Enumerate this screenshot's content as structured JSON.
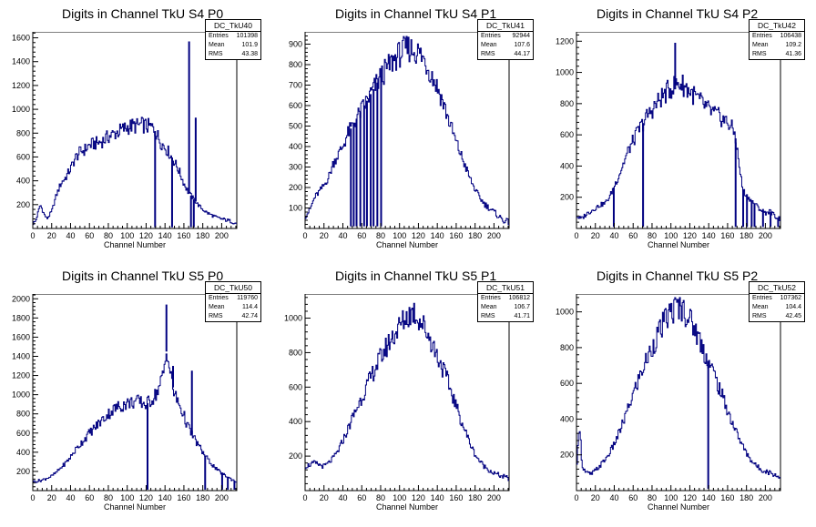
{
  "style": {
    "line_color": "#000080",
    "axis_color": "#000000",
    "background": "#ffffff"
  },
  "chart_data": [
    {
      "type": "bar",
      "title": "Digits in Channel TkU S4 P0",
      "xlabel": "Channel Number",
      "xlim": [
        0,
        216
      ],
      "ylim": [
        0,
        1650
      ],
      "xticks": [
        0,
        20,
        40,
        60,
        80,
        100,
        120,
        140,
        160,
        180,
        200
      ],
      "yticks": [
        200,
        400,
        600,
        800,
        1000,
        1200,
        1400,
        1600
      ],
      "stats": {
        "name": "DC_TkU40",
        "entries_label": "Entries",
        "entries": "101398",
        "mean_label": "Mean",
        "mean": "101.9",
        "rms_label": "RMS",
        "rms": "43.38"
      },
      "profile": [
        [
          0,
          40
        ],
        [
          3,
          60
        ],
        [
          8,
          200
        ],
        [
          12,
          120
        ],
        [
          15,
          80
        ],
        [
          20,
          140
        ],
        [
          25,
          280
        ],
        [
          30,
          380
        ],
        [
          35,
          430
        ],
        [
          40,
          500
        ],
        [
          45,
          590
        ],
        [
          50,
          640
        ],
        [
          55,
          660
        ],
        [
          60,
          700
        ],
        [
          65,
          710
        ],
        [
          70,
          720
        ],
        [
          75,
          740
        ],
        [
          80,
          770
        ],
        [
          85,
          790
        ],
        [
          90,
          810
        ],
        [
          95,
          830
        ],
        [
          100,
          850
        ],
        [
          105,
          860
        ],
        [
          110,
          860
        ],
        [
          115,
          870
        ],
        [
          120,
          860
        ],
        [
          125,
          850
        ],
        [
          128,
          840
        ],
        [
          132,
          780
        ],
        [
          136,
          720
        ],
        [
          140,
          680
        ],
        [
          144,
          640
        ],
        [
          150,
          560
        ],
        [
          155,
          480
        ],
        [
          160,
          380
        ],
        [
          165,
          300
        ],
        [
          170,
          250
        ],
        [
          175,
          200
        ],
        [
          180,
          160
        ],
        [
          185,
          130
        ],
        [
          190,
          110
        ],
        [
          195,
          90
        ],
        [
          200,
          80
        ],
        [
          205,
          70
        ],
        [
          210,
          60
        ],
        [
          216,
          40
        ]
      ],
      "spikes": [
        [
          129,
          10
        ],
        [
          147,
          10
        ],
        [
          165,
          1570
        ],
        [
          167,
          10
        ],
        [
          170,
          10
        ],
        [
          172,
          930
        ]
      ]
    },
    {
      "type": "bar",
      "title": "Digits in Channel TkU S4 P1",
      "xlabel": "Channel Number",
      "xlim": [
        0,
        216
      ],
      "ylim": [
        0,
        960
      ],
      "xticks": [
        0,
        20,
        40,
        60,
        80,
        100,
        120,
        140,
        160,
        180,
        200
      ],
      "yticks": [
        100,
        200,
        300,
        400,
        500,
        600,
        700,
        800,
        900
      ],
      "stats": {
        "name": "DC_TkU41",
        "entries_label": "Entries",
        "entries": "92944",
        "mean_label": "Mean",
        "mean": "107.6",
        "rms_label": "RMS",
        "rms": "44.17"
      },
      "profile": [
        [
          0,
          60
        ],
        [
          5,
          90
        ],
        [
          10,
          150
        ],
        [
          15,
          180
        ],
        [
          20,
          210
        ],
        [
          25,
          250
        ],
        [
          30,
          320
        ],
        [
          35,
          360
        ],
        [
          40,
          400
        ],
        [
          45,
          460
        ],
        [
          50,
          500
        ],
        [
          55,
          540
        ],
        [
          60,
          580
        ],
        [
          65,
          620
        ],
        [
          70,
          660
        ],
        [
          75,
          700
        ],
        [
          80,
          740
        ],
        [
          85,
          770
        ],
        [
          90,
          800
        ],
        [
          95,
          830
        ],
        [
          100,
          850
        ],
        [
          105,
          870
        ],
        [
          110,
          880
        ],
        [
          115,
          870
        ],
        [
          120,
          860
        ],
        [
          125,
          830
        ],
        [
          130,
          790
        ],
        [
          135,
          740
        ],
        [
          140,
          690
        ],
        [
          145,
          630
        ],
        [
          150,
          560
        ],
        [
          155,
          490
        ],
        [
          160,
          420
        ],
        [
          165,
          360
        ],
        [
          170,
          300
        ],
        [
          175,
          240
        ],
        [
          180,
          190
        ],
        [
          185,
          150
        ],
        [
          190,
          120
        ],
        [
          195,
          100
        ],
        [
          200,
          80
        ],
        [
          205,
          60
        ],
        [
          210,
          40
        ],
        [
          216,
          30
        ]
      ],
      "spikes": [
        [
          48,
          10
        ],
        [
          51,
          10
        ],
        [
          54,
          10
        ],
        [
          58,
          10
        ],
        [
          62,
          10
        ],
        [
          65,
          10
        ],
        [
          69,
          10
        ],
        [
          72,
          10
        ],
        [
          76,
          10
        ],
        [
          80,
          10
        ]
      ]
    },
    {
      "type": "bar",
      "title": "Digits in Channel TkU S4 P2",
      "xlabel": "Channel Number",
      "xlim": [
        0,
        216
      ],
      "ylim": [
        0,
        1260
      ],
      "xticks": [
        0,
        20,
        40,
        60,
        80,
        100,
        120,
        140,
        160,
        180,
        200
      ],
      "yticks": [
        200,
        400,
        600,
        800,
        1000,
        1200
      ],
      "stats": {
        "name": "DC_TkU42",
        "entries_label": "Entries",
        "entries": "106438",
        "mean_label": "Mean",
        "mean": "109.2",
        "rms_label": "RMS",
        "rms": "41.36"
      },
      "profile": [
        [
          0,
          80
        ],
        [
          5,
          60
        ],
        [
          10,
          90
        ],
        [
          15,
          110
        ],
        [
          20,
          130
        ],
        [
          25,
          150
        ],
        [
          30,
          160
        ],
        [
          35,
          200
        ],
        [
          40,
          270
        ],
        [
          45,
          340
        ],
        [
          50,
          420
        ],
        [
          55,
          500
        ],
        [
          60,
          560
        ],
        [
          65,
          620
        ],
        [
          70,
          670
        ],
        [
          75,
          720
        ],
        [
          80,
          760
        ],
        [
          85,
          800
        ],
        [
          90,
          840
        ],
        [
          95,
          870
        ],
        [
          100,
          900
        ],
        [
          105,
          920
        ],
        [
          110,
          930
        ],
        [
          115,
          910
        ],
        [
          120,
          880
        ],
        [
          125,
          850
        ],
        [
          130,
          820
        ],
        [
          135,
          790
        ],
        [
          140,
          760
        ],
        [
          145,
          740
        ],
        [
          150,
          720
        ],
        [
          155,
          700
        ],
        [
          160,
          680
        ],
        [
          165,
          640
        ],
        [
          168,
          600
        ],
        [
          172,
          420
        ],
        [
          176,
          250
        ],
        [
          180,
          210
        ],
        [
          185,
          180
        ],
        [
          190,
          150
        ],
        [
          195,
          120
        ],
        [
          200,
          100
        ],
        [
          205,
          110
        ],
        [
          210,
          80
        ],
        [
          216,
          60
        ]
      ],
      "spikes": [
        [
          39,
          10
        ],
        [
          70,
          10
        ],
        [
          104,
          1190
        ],
        [
          168,
          10
        ],
        [
          176,
          10
        ],
        [
          180,
          10
        ],
        [
          185,
          10
        ],
        [
          188,
          10
        ],
        [
          197,
          10
        ],
        [
          205,
          10
        ],
        [
          213,
          10
        ]
      ]
    },
    {
      "type": "bar",
      "title": "Digits in Channel TkU S5 P0",
      "xlabel": "Channel Number",
      "xlim": [
        0,
        216
      ],
      "ylim": [
        0,
        2050
      ],
      "xticks": [
        0,
        20,
        40,
        60,
        80,
        100,
        120,
        140,
        160,
        180,
        200
      ],
      "yticks": [
        200,
        400,
        600,
        800,
        1000,
        1200,
        1400,
        1600,
        1800,
        2000
      ],
      "stats": {
        "name": "DC_TkU50",
        "entries_label": "Entries",
        "entries": "119760",
        "mean_label": "Mean",
        "mean": "114.4",
        "rms_label": "RMS",
        "rms": "42.74"
      },
      "profile": [
        [
          0,
          90
        ],
        [
          5,
          100
        ],
        [
          10,
          110
        ],
        [
          15,
          130
        ],
        [
          20,
          150
        ],
        [
          25,
          190
        ],
        [
          30,
          240
        ],
        [
          35,
          290
        ],
        [
          40,
          350
        ],
        [
          45,
          420
        ],
        [
          50,
          480
        ],
        [
          55,
          540
        ],
        [
          60,
          600
        ],
        [
          65,
          650
        ],
        [
          70,
          700
        ],
        [
          75,
          750
        ],
        [
          80,
          800
        ],
        [
          85,
          840
        ],
        [
          90,
          870
        ],
        [
          95,
          890
        ],
        [
          100,
          910
        ],
        [
          105,
          920
        ],
        [
          110,
          930
        ],
        [
          115,
          920
        ],
        [
          120,
          900
        ],
        [
          125,
          940
        ],
        [
          130,
          1000
        ],
        [
          135,
          1100
        ],
        [
          140,
          1300
        ],
        [
          142,
          1500
        ],
        [
          145,
          1250
        ],
        [
          150,
          1000
        ],
        [
          155,
          900
        ],
        [
          160,
          780
        ],
        [
          165,
          650
        ],
        [
          170,
          560
        ],
        [
          175,
          480
        ],
        [
          180,
          400
        ],
        [
          185,
          330
        ],
        [
          190,
          270
        ],
        [
          195,
          220
        ],
        [
          200,
          180
        ],
        [
          205,
          150
        ],
        [
          210,
          120
        ],
        [
          216,
          90
        ]
      ],
      "spikes": [
        [
          121,
          10
        ],
        [
          141,
          1940
        ],
        [
          148,
          1300
        ],
        [
          168,
          1250
        ],
        [
          182,
          10
        ],
        [
          200,
          10
        ],
        [
          206,
          10
        ],
        [
          213,
          10
        ]
      ]
    },
    {
      "type": "bar",
      "title": "Digits in Channel TkU S5 P1",
      "xlabel": "Channel Number",
      "xlim": [
        0,
        216
      ],
      "ylim": [
        0,
        1140
      ],
      "xticks": [
        0,
        20,
        40,
        60,
        80,
        100,
        120,
        140,
        160,
        180,
        200
      ],
      "yticks": [
        200,
        400,
        600,
        800,
        1000
      ],
      "stats": {
        "name": "DC_TkU51",
        "entries_label": "Entries",
        "entries": "106812",
        "mean_label": "Mean",
        "mean": "106.7",
        "rms_label": "RMS",
        "rms": "41.71"
      },
      "profile": [
        [
          0,
          140
        ],
        [
          5,
          150
        ],
        [
          10,
          160
        ],
        [
          15,
          150
        ],
        [
          20,
          140
        ],
        [
          25,
          160
        ],
        [
          30,
          190
        ],
        [
          35,
          230
        ],
        [
          40,
          290
        ],
        [
          45,
          350
        ],
        [
          50,
          420
        ],
        [
          55,
          480
        ],
        [
          60,
          540
        ],
        [
          65,
          600
        ],
        [
          70,
          660
        ],
        [
          75,
          720
        ],
        [
          80,
          770
        ],
        [
          85,
          820
        ],
        [
          90,
          870
        ],
        [
          95,
          910
        ],
        [
          100,
          950
        ],
        [
          105,
          990
        ],
        [
          110,
          1020
        ],
        [
          115,
          1040
        ],
        [
          120,
          1000
        ],
        [
          125,
          960
        ],
        [
          130,
          910
        ],
        [
          135,
          850
        ],
        [
          140,
          780
        ],
        [
          145,
          720
        ],
        [
          150,
          650
        ],
        [
          155,
          570
        ],
        [
          160,
          490
        ],
        [
          165,
          410
        ],
        [
          170,
          340
        ],
        [
          175,
          270
        ],
        [
          180,
          210
        ],
        [
          185,
          170
        ],
        [
          190,
          140
        ],
        [
          195,
          120
        ],
        [
          200,
          100
        ],
        [
          205,
          90
        ],
        [
          210,
          80
        ],
        [
          216,
          70
        ]
      ],
      "spikes": []
    },
    {
      "type": "bar",
      "title": "Digits in Channel TkU S5 P2",
      "xlabel": "Channel Number",
      "xlim": [
        0,
        216
      ],
      "ylim": [
        0,
        1100
      ],
      "xticks": [
        0,
        20,
        40,
        60,
        80,
        100,
        120,
        140,
        160,
        180,
        200
      ],
      "yticks": [
        200,
        400,
        600,
        800,
        1000
      ],
      "stats": {
        "name": "DC_TkU52",
        "entries_label": "Entries",
        "entries": "107362",
        "mean_label": "Mean",
        "mean": "104.4",
        "rms_label": "RMS",
        "rms": "42.45"
      },
      "profile": [
        [
          0,
          80
        ],
        [
          3,
          400
        ],
        [
          6,
          140
        ],
        [
          10,
          100
        ],
        [
          15,
          90
        ],
        [
          20,
          110
        ],
        [
          25,
          140
        ],
        [
          30,
          170
        ],
        [
          35,
          210
        ],
        [
          40,
          260
        ],
        [
          45,
          320
        ],
        [
          50,
          390
        ],
        [
          55,
          460
        ],
        [
          60,
          540
        ],
        [
          65,
          610
        ],
        [
          70,
          680
        ],
        [
          75,
          740
        ],
        [
          80,
          800
        ],
        [
          85,
          860
        ],
        [
          90,
          910
        ],
        [
          95,
          960
        ],
        [
          100,
          1000
        ],
        [
          105,
          1020
        ],
        [
          110,
          1030
        ],
        [
          115,
          1000
        ],
        [
          120,
          960
        ],
        [
          125,
          910
        ],
        [
          130,
          850
        ],
        [
          135,
          780
        ],
        [
          140,
          720
        ],
        [
          145,
          660
        ],
        [
          150,
          590
        ],
        [
          155,
          520
        ],
        [
          160,
          450
        ],
        [
          165,
          380
        ],
        [
          170,
          320
        ],
        [
          175,
          260
        ],
        [
          180,
          210
        ],
        [
          185,
          170
        ],
        [
          190,
          140
        ],
        [
          195,
          120
        ],
        [
          200,
          110
        ],
        [
          205,
          100
        ],
        [
          210,
          90
        ],
        [
          216,
          70
        ]
      ],
      "spikes": [
        [
          139,
          10
        ]
      ]
    }
  ]
}
